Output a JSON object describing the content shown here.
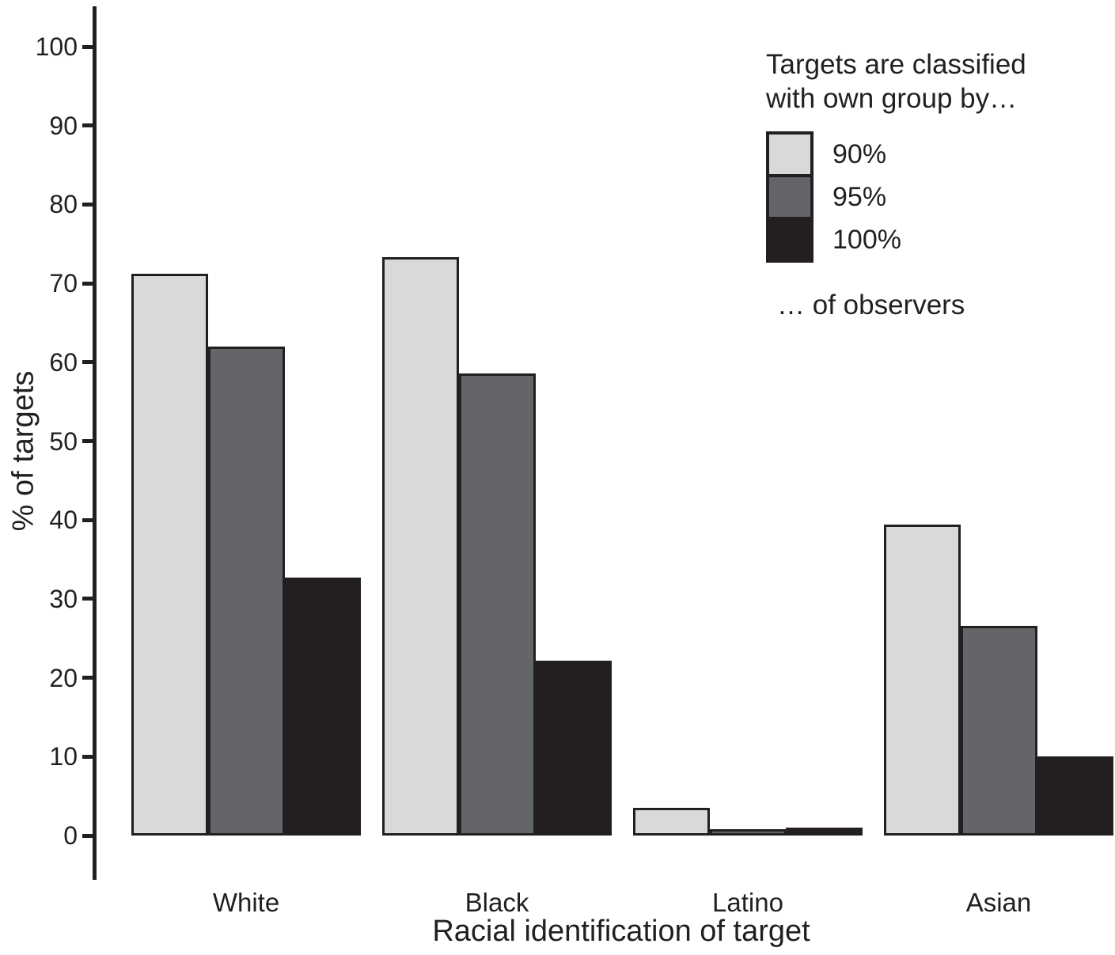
{
  "chart_data": {
    "type": "bar",
    "title": "",
    "xlabel": "Racial identification of target",
    "ylabel": "% of targets",
    "categories": [
      "White",
      "Black",
      "Latino",
      "Asian"
    ],
    "series": [
      {
        "name": "90%",
        "color": "#d8d9da",
        "values": [
          71.2,
          73.3,
          3.5,
          39.4
        ]
      },
      {
        "name": "95%",
        "color": "#646569",
        "values": [
          62.0,
          58.6,
          0.8,
          26.6
        ]
      },
      {
        "name": "100%",
        "color": "#231f20",
        "values": [
          32.7,
          22.2,
          1.0,
          10.0
        ]
      }
    ],
    "ylim": [
      0,
      100
    ],
    "yticks": [
      0,
      10,
      20,
      30,
      40,
      50,
      60,
      70,
      80,
      90,
      100
    ],
    "grid": false,
    "legend_position": "upper right"
  },
  "legend": {
    "title_line1": "Targets are classified",
    "title_line2": "with own group by…",
    "footer": "… of observers",
    "items": [
      {
        "label": "90%",
        "color": "#d8d9da"
      },
      {
        "label": "95%",
        "color": "#646569"
      },
      {
        "label": "100%",
        "color": "#231f20"
      }
    ]
  },
  "colors": {
    "stroke": "#231f20",
    "text": "#231f20",
    "bar_light": "#d8d9da",
    "bar_mid": "#646569",
    "bar_dark": "#231f20",
    "background": "#ffffff"
  }
}
